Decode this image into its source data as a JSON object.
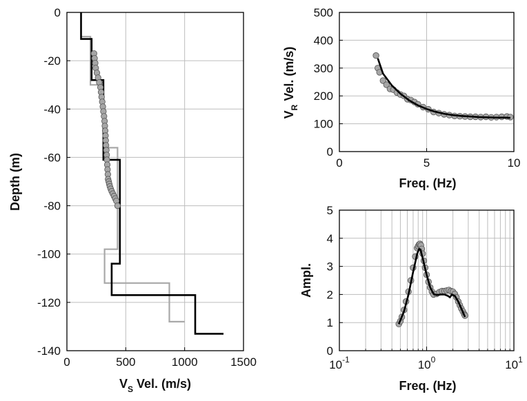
{
  "chart_data": [
    {
      "type": "line",
      "xlabel_main": "V",
      "xlabel_sub": "S",
      "xlabel_rest": " Vel. (m/s)",
      "ylabel": "Depth (m)",
      "xlim": [
        0,
        1500
      ],
      "ylim": [
        -140,
        0
      ],
      "xticks": [
        "0",
        "500",
        "1000",
        "1500"
      ],
      "yticks": [
        "0",
        "-20",
        "-40",
        "-60",
        "-80",
        "-100",
        "-120",
        "-140"
      ],
      "grid": true,
      "colors": {
        "initial": "#a8a8a8",
        "final": "#000000",
        "markers": "#a6a6a6"
      },
      "series": [
        {
          "x": [
            120,
            120,
            200,
            200,
            310,
            310,
            430,
            430,
            320,
            320,
            500,
            500,
            870,
            870,
            1000
          ],
          "y": [
            0,
            -10,
            -10,
            -30,
            -30,
            -56,
            -56,
            -98,
            -98,
            -112,
            -112,
            -112,
            -112,
            -128,
            -128
          ]
        },
        {
          "x": [
            120,
            120,
            210,
            210,
            310,
            310,
            450,
            450,
            380,
            380,
            1090,
            1090,
            1330
          ],
          "y": [
            0,
            -11,
            -11,
            -28,
            -28,
            -61,
            -61,
            -104,
            -104,
            -117,
            -117,
            -133,
            -133
          ]
        },
        {
          "x": [
            230,
            235,
            240,
            245,
            255,
            265,
            275,
            285,
            290,
            295,
            300,
            305,
            310,
            315,
            320,
            322,
            325,
            328,
            330,
            332,
            335,
            338,
            340,
            343,
            345,
            348,
            350,
            355,
            360,
            365,
            372,
            380,
            390,
            400,
            410,
            420,
            430
          ],
          "y": [
            -17,
            -19,
            -21,
            -23,
            -25,
            -27,
            -29,
            -31,
            -33,
            -35,
            -37,
            -39,
            -41,
            -43,
            -45,
            -47,
            -49,
            -51,
            -53,
            -55,
            -57,
            -59,
            -61,
            -63,
            -65,
            -67,
            -69,
            -70,
            -71,
            -72,
            -73,
            -74,
            -75,
            -76,
            -77,
            -78,
            -80
          ]
        }
      ]
    },
    {
      "type": "scatter",
      "xlabel": "Freq. (Hz)",
      "ylabel_main": "V",
      "ylabel_sub": "R",
      "ylabel_rest": " Vel. (m/s)",
      "xlim": [
        0,
        10
      ],
      "ylim": [
        0,
        500
      ],
      "xticks": [
        "0",
        "5",
        "10"
      ],
      "yticks": [
        "0",
        "100",
        "200",
        "300",
        "400",
        "500"
      ],
      "grid": true,
      "series": [
        {
          "x": [
            2.1,
            2.2,
            2.3,
            2.5,
            2.7,
            2.9,
            3.1,
            3.3,
            3.5,
            3.7,
            3.9,
            4.1,
            4.3,
            4.5,
            4.8,
            5.1,
            5.4,
            5.7,
            6.0,
            6.3,
            6.6,
            6.9,
            7.2,
            7.5,
            7.8,
            8.1,
            8.4,
            8.7,
            9.0,
            9.3,
            9.6,
            9.8
          ],
          "y": [
            345,
            300,
            285,
            255,
            240,
            225,
            222,
            212,
            205,
            200,
            188,
            185,
            178,
            170,
            160,
            152,
            142,
            138,
            134,
            131,
            128,
            127,
            126,
            125,
            125,
            124,
            125,
            123,
            124,
            125,
            126,
            124
          ]
        },
        {
          "x": [
            2.2,
            2.5,
            3.0,
            3.5,
            4.0,
            4.5,
            5.0,
            5.5,
            6.0,
            6.5,
            7.0,
            7.5,
            8.0,
            8.5,
            9.0,
            9.5,
            9.8
          ],
          "y": [
            335,
            280,
            238,
            208,
            184,
            166,
            153,
            143,
            136,
            131,
            128,
            126,
            124,
            123,
            122,
            122,
            121
          ]
        }
      ]
    },
    {
      "type": "scatter",
      "xlabel": "Freq. (Hz)",
      "ylabel": "Ampl.",
      "xscale": "log",
      "xlim": [
        0.1,
        10
      ],
      "ylim": [
        0,
        5
      ],
      "xtick_base": "10",
      "xtick_exps": [
        "-1",
        "0",
        "1"
      ],
      "yticks": [
        "0",
        "1",
        "2",
        "3",
        "4",
        "5"
      ],
      "grid": true,
      "series": [
        {
          "x": [
            0.48,
            0.5,
            0.52,
            0.55,
            0.58,
            0.62,
            0.66,
            0.7,
            0.74,
            0.78,
            0.8,
            0.82,
            0.84,
            0.86,
            0.88,
            0.9,
            0.93,
            0.96,
            1.0,
            1.05,
            1.1,
            1.15,
            1.2,
            1.3,
            1.4,
            1.5,
            1.6,
            1.7,
            1.8,
            1.9,
            2.0,
            2.1,
            2.2,
            2.3,
            2.4,
            2.5,
            2.6,
            2.7,
            2.75
          ],
          "y": [
            0.95,
            1.05,
            1.2,
            1.45,
            1.75,
            2.1,
            2.5,
            2.95,
            3.35,
            3.65,
            3.72,
            3.78,
            3.8,
            3.75,
            3.62,
            3.45,
            3.2,
            2.95,
            2.7,
            2.45,
            2.25,
            2.1,
            2.0,
            2.02,
            2.08,
            2.12,
            2.12,
            2.14,
            2.16,
            2.12,
            2.1,
            2.02,
            1.9,
            1.75,
            1.62,
            1.5,
            1.4,
            1.3,
            1.25
          ]
        },
        {
          "x": [
            0.48,
            0.55,
            0.62,
            0.7,
            0.78,
            0.82,
            0.85,
            0.9,
            1.0,
            1.1,
            1.2,
            1.3,
            1.45,
            1.6,
            1.75,
            1.85,
            1.95,
            2.1,
            2.3,
            2.5,
            2.75
          ],
          "y": [
            0.95,
            1.4,
            2.0,
            2.8,
            3.45,
            3.62,
            3.6,
            3.3,
            2.7,
            2.25,
            2.02,
            1.98,
            2.0,
            2.0,
            1.95,
            1.9,
            2.0,
            1.95,
            1.75,
            1.5,
            1.2
          ]
        }
      ]
    }
  ]
}
